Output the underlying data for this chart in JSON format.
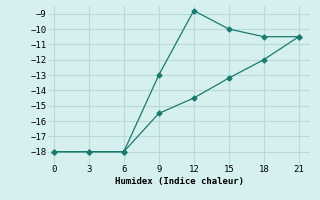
{
  "line1_x": [
    0,
    3,
    6,
    9,
    12,
    15,
    18,
    21
  ],
  "line1_y": [
    -18.0,
    -18.0,
    -18.0,
    -13.0,
    -8.8,
    -10.0,
    -10.5,
    -10.5
  ],
  "line2_x": [
    0,
    3,
    6,
    9,
    12,
    15,
    18,
    21
  ],
  "line2_y": [
    -18.0,
    -18.0,
    -18.0,
    -15.5,
    -14.5,
    -13.2,
    -12.0,
    -10.5
  ],
  "color": "#1a7a6e",
  "xlabel": "Humidex (Indice chaleur)",
  "xlim": [
    -0.5,
    22
  ],
  "ylim": [
    -18.8,
    -8.5
  ],
  "xticks": [
    0,
    3,
    6,
    9,
    12,
    15,
    18,
    21
  ],
  "yticks": [
    -18,
    -17,
    -16,
    -15,
    -14,
    -13,
    -12,
    -11,
    -10,
    -9
  ],
  "background_color": "#d6f0f0",
  "grid_color": "#b8dada",
  "marker": "D"
}
